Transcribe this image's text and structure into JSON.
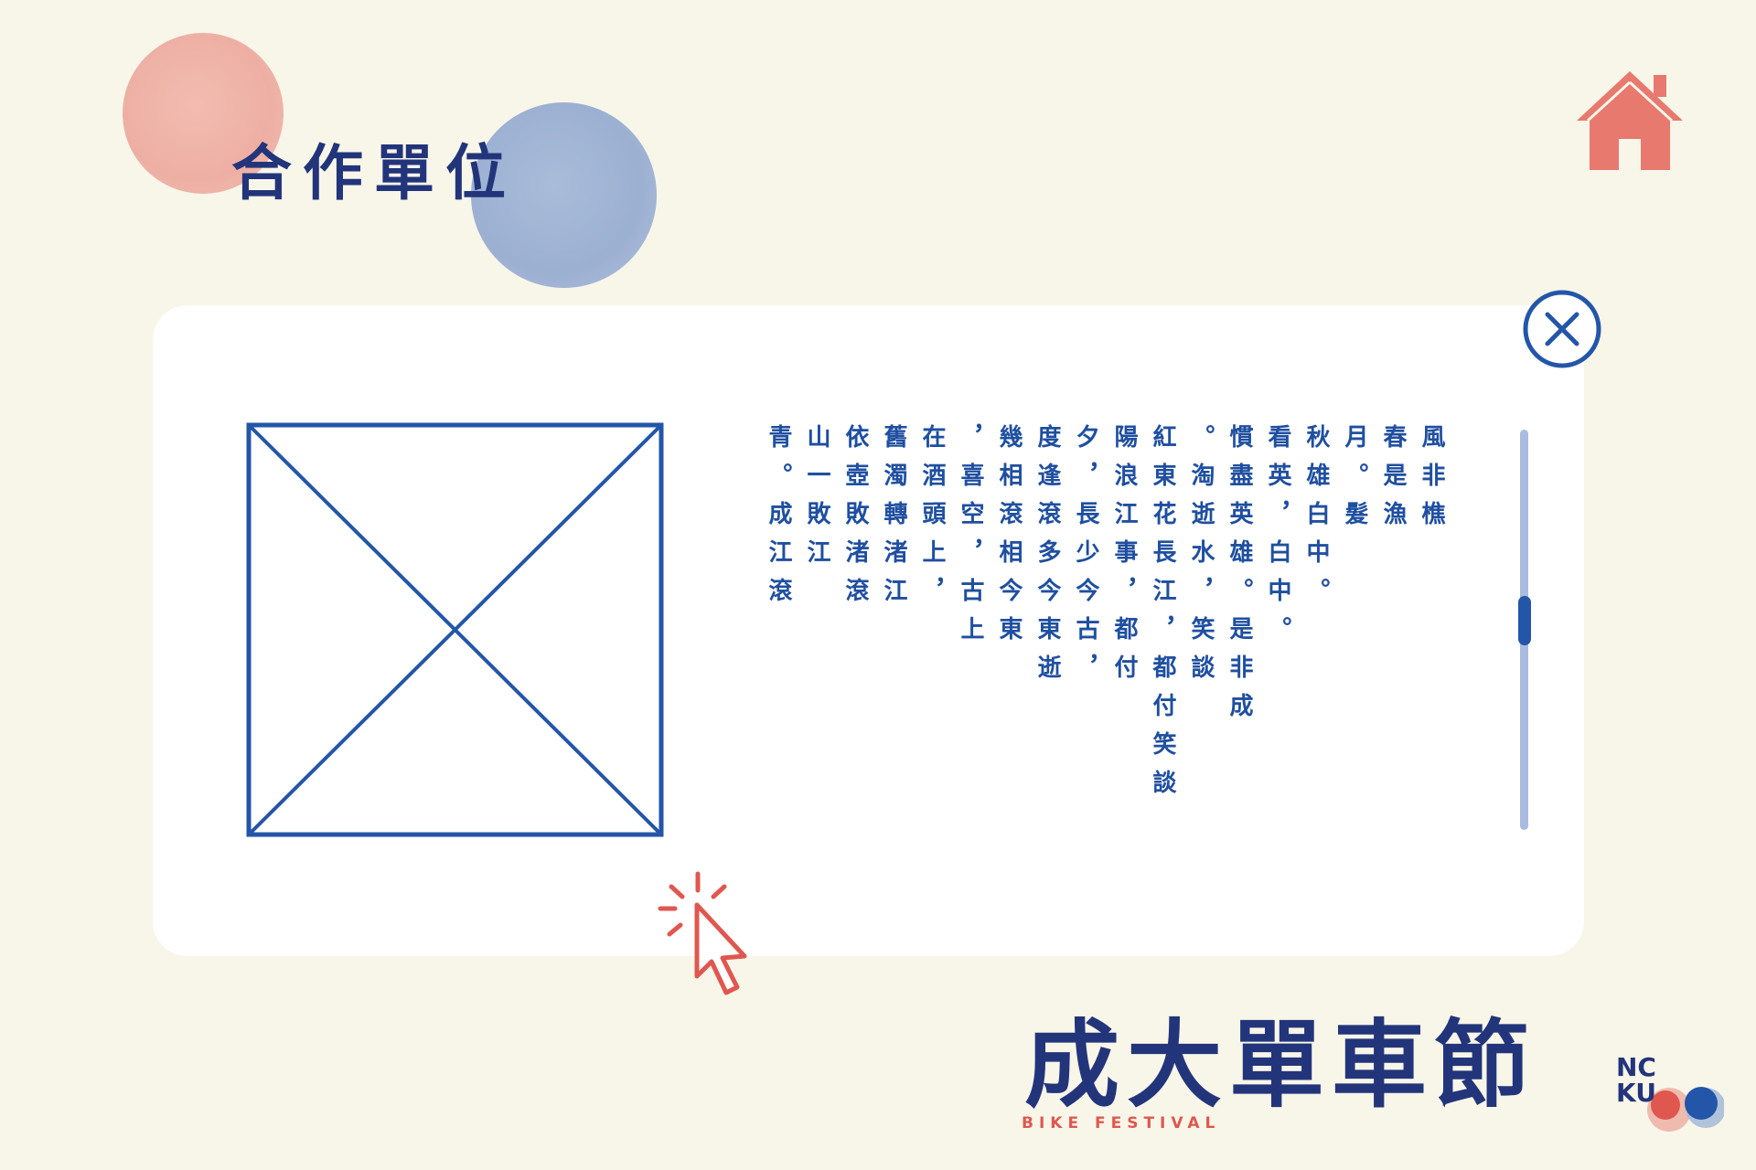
{
  "header": {
    "title": "合作單位"
  },
  "panel": {
    "text_columns": [
      "風非樵",
      "春是漁",
      "月。髮",
      "秋雄白中。",
      "看英，白中。",
      "慣盡英雄。是非成",
      "。淘逝水，笑談",
      "紅東花長江，都付笑談",
      "陽浪江事，都付",
      "夕，長少今古，",
      "度逢滾多今東逝",
      "幾相滾相今東",
      "，喜空，古上",
      "在酒頭上，",
      "舊濁轉渚江",
      "依壺敗渚滾",
      "山一敗江",
      "青。成江滾"
    ],
    "scroll": {
      "position": 0.41
    }
  },
  "logo": {
    "title": "成大單車節",
    "subtitle": "BIKE FESTIVAL",
    "badge": "NCKU"
  },
  "colors": {
    "background": "#f8f6e9",
    "title_navy": "#22357a",
    "text_blue": "#1f4fa0",
    "accent_red": "#e0574f",
    "home_salmon": "#e8796f"
  },
  "icons": {
    "home": "home-icon",
    "close": "close-icon",
    "cursor": "cursor-icon",
    "placeholder": "image-placeholder-icon"
  }
}
